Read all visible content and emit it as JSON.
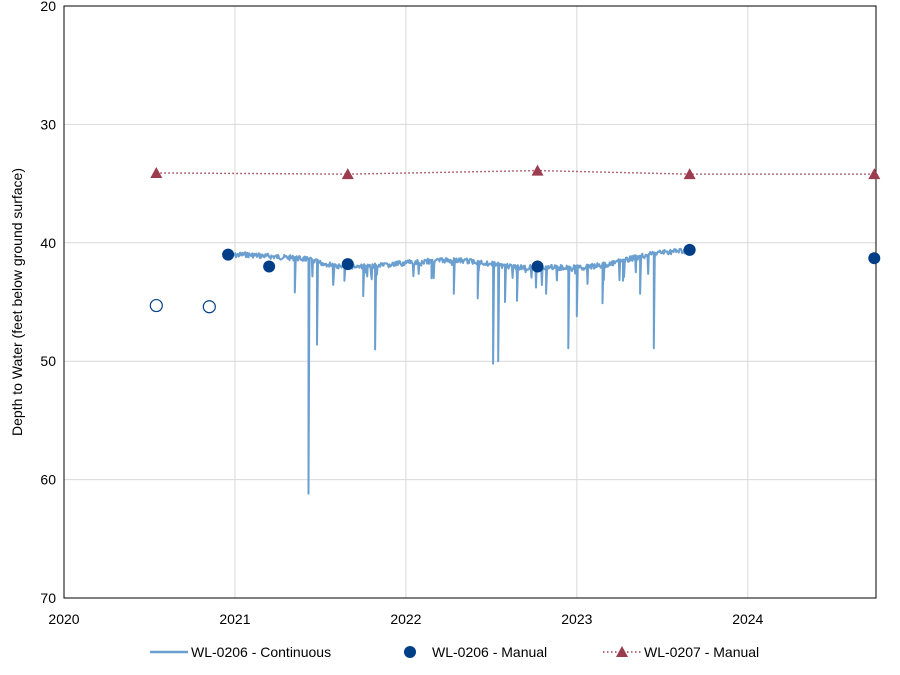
{
  "chart_data": {
    "type": "line",
    "title": "",
    "xlabel": "",
    "ylabel": "Depth to Water (feet below ground surface)",
    "xlim": [
      2020,
      2024.75
    ],
    "ylim": [
      20,
      70
    ],
    "y_inverted": true,
    "grid": true,
    "legend_position": "bottom",
    "x_ticks": [
      "2020",
      "2021",
      "2022",
      "2023",
      "2024"
    ],
    "y_ticks": [
      "20",
      "30",
      "40",
      "50",
      "60",
      "70"
    ],
    "colors": {
      "continuous": "#6a9fd0",
      "manual_0206": "#003f87",
      "manual_0207": "#9b3d4f"
    },
    "series": [
      {
        "name": "WL-0206 - Continuous",
        "kind": "line",
        "color": "#6a9fd0",
        "x": [
          2020.98,
          2021.05,
          2021.15,
          2021.25,
          2021.35,
          2021.42,
          2021.5,
          2021.6,
          2021.7,
          2021.8,
          2021.9,
          2022.0,
          2022.1,
          2022.2,
          2022.3,
          2022.4,
          2022.5,
          2022.6,
          2022.7,
          2022.8,
          2022.9,
          2023.0,
          2023.1,
          2023.2,
          2023.3,
          2023.4,
          2023.5,
          2023.6,
          2023.65
        ],
        "y": [
          41.0,
          40.9,
          41.0,
          41.1,
          41.2,
          41.3,
          41.6,
          41.9,
          41.9,
          41.9,
          41.8,
          41.6,
          41.5,
          41.4,
          41.4,
          41.5,
          41.7,
          41.9,
          42.0,
          42.0,
          42.0,
          42.0,
          41.9,
          41.7,
          41.3,
          41.0,
          40.7,
          40.6,
          40.6
        ],
        "spikes": [
          {
            "x": 2021.35,
            "y": 44.2
          },
          {
            "x": 2021.43,
            "y": 61.2
          },
          {
            "x": 2021.48,
            "y": 48.6
          },
          {
            "x": 2021.64,
            "y": 43.2
          },
          {
            "x": 2021.75,
            "y": 44.5
          },
          {
            "x": 2021.82,
            "y": 49.0
          },
          {
            "x": 2022.15,
            "y": 43.0
          },
          {
            "x": 2022.28,
            "y": 44.3
          },
          {
            "x": 2022.42,
            "y": 44.7
          },
          {
            "x": 2022.51,
            "y": 50.2
          },
          {
            "x": 2022.54,
            "y": 50.0
          },
          {
            "x": 2022.58,
            "y": 45.0
          },
          {
            "x": 2022.65,
            "y": 44.9
          },
          {
            "x": 2022.82,
            "y": 44.3
          },
          {
            "x": 2022.95,
            "y": 48.9
          },
          {
            "x": 2023.0,
            "y": 46.2
          },
          {
            "x": 2023.15,
            "y": 45.1
          },
          {
            "x": 2023.27,
            "y": 43.2
          },
          {
            "x": 2023.37,
            "y": 44.3
          },
          {
            "x": 2023.45,
            "y": 48.9
          }
        ]
      },
      {
        "name": "WL-0206 - Manual",
        "kind": "marker-circle",
        "color": "#003f87",
        "points": [
          {
            "x": 2020.54,
            "y": 45.3,
            "hollow": true
          },
          {
            "x": 2020.85,
            "y": 45.4,
            "hollow": true
          },
          {
            "x": 2020.96,
            "y": 41.0,
            "hollow": false
          },
          {
            "x": 2021.2,
            "y": 42.0,
            "hollow": false
          },
          {
            "x": 2021.66,
            "y": 41.8,
            "hollow": false
          },
          {
            "x": 2022.77,
            "y": 42.0,
            "hollow": false
          },
          {
            "x": 2023.66,
            "y": 40.6,
            "hollow": false
          },
          {
            "x": 2024.74,
            "y": 41.3,
            "hollow": false
          }
        ]
      },
      {
        "name": "WL-0207 - Manual",
        "kind": "dotted-line-triangle",
        "color": "#9b3d4f",
        "x": [
          2020.54,
          2021.66,
          2022.77,
          2023.66,
          2024.74
        ],
        "y": [
          34.1,
          34.2,
          33.9,
          34.2,
          34.2
        ]
      }
    ]
  }
}
